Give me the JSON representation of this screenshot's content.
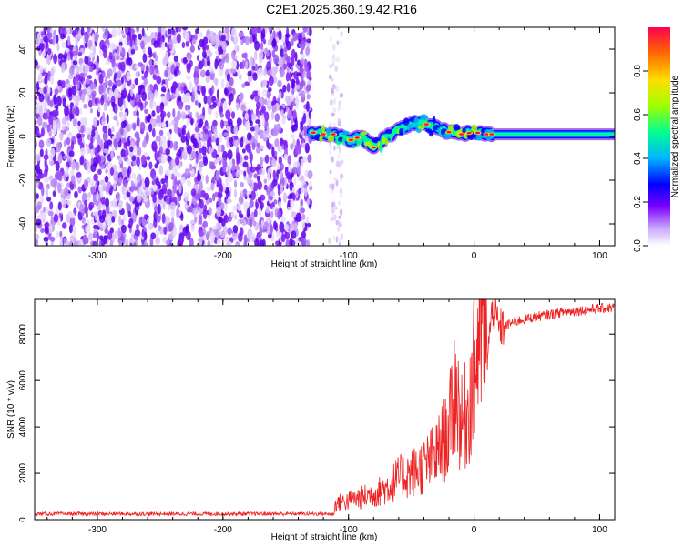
{
  "title": "C2E1.2025.360.19.42.R16",
  "chart_data": [
    {
      "type": "heatmap",
      "name": "spectrogram",
      "xlabel": "Height of straight line (km)",
      "ylabel": "Frequency (Hz)",
      "xlim": [
        -350,
        112
      ],
      "ylim": [
        -50,
        50
      ],
      "xticks": [
        -300,
        -200,
        -100,
        0,
        100
      ],
      "yticks": [
        -40,
        -20,
        0,
        20,
        40
      ],
      "colorbar": {
        "label": "Normalized spectral amplitude",
        "range": [
          0,
          1
        ],
        "ticks": [
          0.0,
          0.2,
          0.4,
          0.6,
          0.8
        ]
      },
      "regions": [
        {
          "description": "noise",
          "x_range": [
            -350,
            -130
          ],
          "freq_range": [
            -50,
            50
          ]
        },
        {
          "description": "sparse noise",
          "x_range": [
            -115,
            -105
          ],
          "freq_range": [
            -50,
            50
          ]
        },
        {
          "description": "signal band",
          "x_range": [
            -130,
            112
          ],
          "freq_center": 0
        }
      ],
      "signal_track": {
        "x": [
          -130,
          -120,
          -110,
          -100,
          -90,
          -80,
          -70,
          -60,
          -50,
          -40,
          -30,
          -20,
          -10,
          0,
          10,
          20,
          40,
          60,
          80,
          112
        ],
        "freq": [
          2,
          1,
          1,
          -2,
          0,
          -5,
          0,
          3,
          6,
          6,
          4,
          2,
          1,
          2,
          1,
          1,
          1,
          1,
          1,
          1
        ]
      }
    },
    {
      "type": "line",
      "name": "snr",
      "xlabel": "Height of straight line (km)",
      "ylabel": "SNR (10 * v/v)",
      "xlim": [
        -350,
        112
      ],
      "ylim": [
        0,
        9500
      ],
      "xticks": [
        -300,
        -200,
        -100,
        0,
        100
      ],
      "yticks": [
        0,
        2000,
        4000,
        6000,
        8000
      ],
      "color": "#ee2222",
      "x": [
        -350,
        -300,
        -250,
        -200,
        -150,
        -112,
        -110,
        -100,
        -90,
        -80,
        -70,
        -60,
        -50,
        -40,
        -30,
        -20,
        -15,
        -10,
        -5,
        0,
        5,
        10,
        15,
        20,
        30,
        40,
        50,
        60,
        70,
        80,
        90,
        100,
        112
      ],
      "snr": [
        250,
        250,
        250,
        250,
        250,
        250,
        700,
        800,
        950,
        1100,
        1350,
        1800,
        2000,
        2300,
        2800,
        3800,
        5800,
        4000,
        4800,
        6200,
        8500,
        7000,
        9100,
        8200,
        8500,
        8650,
        8750,
        8850,
        8950,
        9000,
        9050,
        9100,
        9150
      ]
    }
  ]
}
